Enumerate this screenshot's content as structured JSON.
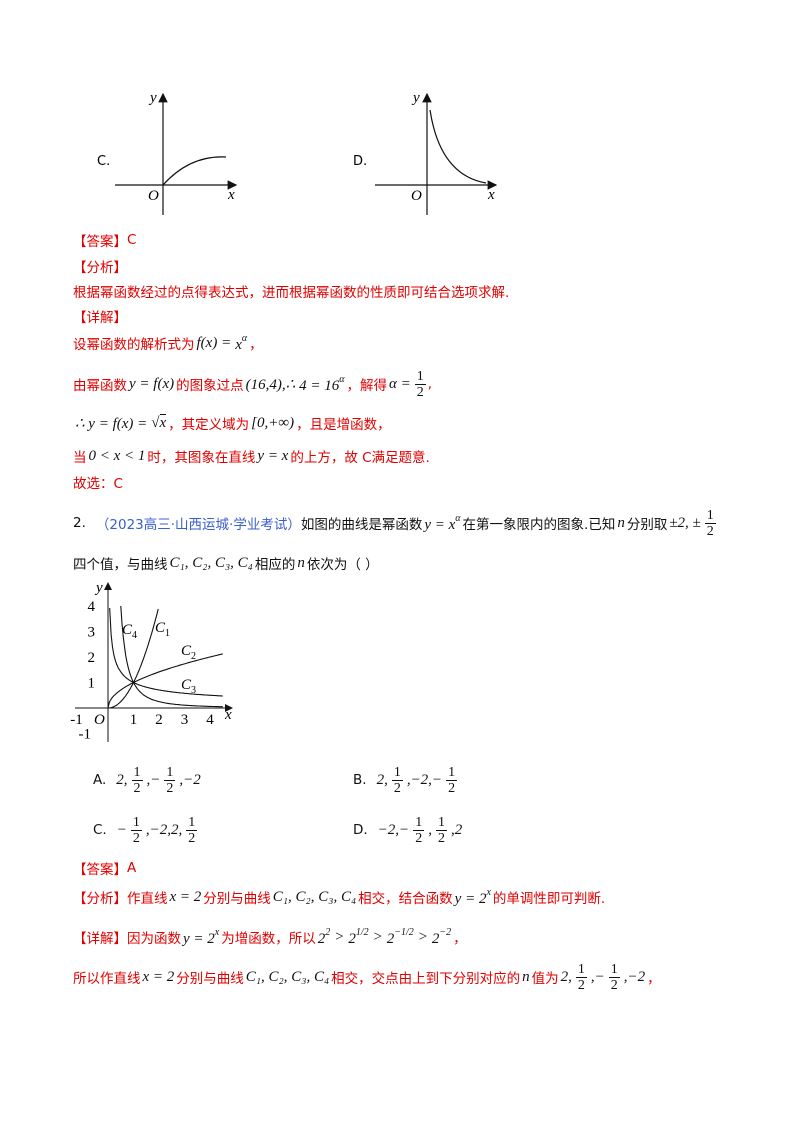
{
  "q1_options": [
    {
      "label": "C.",
      "axis": {
        "y": "y",
        "origin": "O",
        "x": "x"
      }
    },
    {
      "label": "D.",
      "axis": {
        "y": "y",
        "origin": "O",
        "x": "x"
      }
    }
  ],
  "q1_answer": {
    "tag": "【答案】",
    "text": "C"
  },
  "q1_analysis": {
    "tag": "【分析】",
    "text": "根据幂函数经过的点得表达式，进而根据幂函数的性质即可结合选项求解."
  },
  "q1_detail": {
    "tag": "【详解】",
    "lines": [
      [
        "设幂函数的解析式为",
        {
          "m": "f(x) = "
        },
        {
          "sup": [
            "x",
            "α"
          ]
        },
        "，"
      ],
      [
        "由幂函数 ",
        {
          "m": "y = f(x)"
        },
        " 的图象过点",
        {
          "m": "(16,4),∴"
        },
        {
          "sup": [
            "4 = 16",
            "α"
          ]
        },
        "，解得 ",
        {
          "m": "α = "
        },
        {
          "frac": [
            "1",
            "2"
          ]
        },
        ","
      ],
      [
        {
          "m": "∴ y = f(x) = "
        },
        {
          "sqrt": "x"
        },
        "，其定义域为",
        {
          "m": "[0,+∞)"
        },
        "，且是增函数，"
      ],
      [
        "当",
        {
          "m": "0 < x < 1"
        },
        "时，其图象在直线",
        {
          "m": "y = x"
        },
        "的上方，故 C满足题意."
      ]
    ],
    "conclusion": "故选：C"
  },
  "q2": {
    "number": "2.",
    "source": "（2023高三·山西运城·学业考试）",
    "stem_lines": [
      [
        "如图的曲线是幂函数",
        {
          "sup": [
            "y = x",
            "α"
          ]
        },
        "在第一象限内的图象.已知",
        {
          "m": "n"
        },
        "分别取",
        {
          "m": "±2, ±"
        },
        {
          "frac": [
            "1",
            "2"
          ]
        }
      ],
      [
        "四个值，与曲线",
        {
          "m": "C₁, C₂, C₃, C₄"
        },
        "相应的",
        {
          "m": "n"
        },
        "依次为（    ）"
      ]
    ],
    "figure": {
      "y": "y",
      "x": "x",
      "origin": "O",
      "yticks": [
        "4",
        "3",
        "2",
        "1",
        "-1"
      ],
      "xticks": [
        "-1",
        "1",
        "2",
        "3",
        "4"
      ],
      "curves": [
        {
          "name": "C",
          "index": "4"
        },
        {
          "name": "C",
          "index": "1"
        },
        {
          "name": "C",
          "index": "2"
        },
        {
          "name": "C",
          "index": "3"
        }
      ]
    },
    "options": [
      {
        "label": "A.",
        "parts": [
          {
            "m": "2,"
          },
          {
            "frac": [
              "1",
              "2"
            ]
          },
          {
            "m": ",−"
          },
          {
            "frac": [
              "1",
              "2"
            ]
          },
          {
            "m": ",−2"
          }
        ]
      },
      {
        "label": "B.",
        "parts": [
          {
            "m": "2,"
          },
          {
            "frac": [
              "1",
              "2"
            ]
          },
          {
            "m": ",−2,−"
          },
          {
            "frac": [
              "1",
              "2"
            ]
          }
        ]
      },
      {
        "label": "C.",
        "parts": [
          {
            "m": "−"
          },
          {
            "frac": [
              "1",
              "2"
            ]
          },
          {
            "m": ",−2,2,"
          },
          {
            "frac": [
              "1",
              "2"
            ]
          }
        ]
      },
      {
        "label": "D.",
        "parts": [
          {
            "m": "−2,−"
          },
          {
            "frac": [
              "1",
              "2"
            ]
          },
          {
            "m": ","
          },
          {
            "frac": [
              "1",
              "2"
            ]
          },
          {
            "m": ",2"
          }
        ]
      }
    ],
    "answer": {
      "tag": "【答案】",
      "text": "A"
    },
    "analysis": {
      "tag": "【分析】",
      "parts": [
        "作直线",
        {
          "m": "x = 2"
        },
        "分别与曲线",
        {
          "m": "C₁, C₂, C₃, C₄"
        },
        "相交，结合函数",
        {
          "sup": [
            "y = 2",
            "x"
          ]
        },
        "的单调性即可判断."
      ]
    },
    "detail": {
      "tag": "【详解】",
      "lines": [
        [
          "因为函数",
          {
            "sup": [
              "y = 2",
              "x"
            ]
          },
          "为增函数，所以",
          {
            "sup": [
              "2",
              "2"
            ]
          },
          {
            "m": " > "
          },
          {
            "sup": [
              "2",
              "1/2"
            ]
          },
          {
            "m": " > "
          },
          {
            "sup": [
              "2",
              "−1/2"
            ]
          },
          {
            "m": " > "
          },
          {
            "sup": [
              "2",
              "−2"
            ]
          },
          "，"
        ],
        [
          "所以作直线",
          {
            "m": "x = 2"
          },
          "分别与曲线",
          {
            "m": "C₁, C₂, C₃, C₄"
          },
          "相交，交点由上到下分别对应的",
          {
            "m": "n"
          },
          "值为",
          {
            "m": "2,"
          },
          {
            "frac": [
              "1",
              "2"
            ]
          },
          {
            "m": ",−"
          },
          {
            "frac": [
              "1",
              "2"
            ]
          },
          {
            "m": ",−2"
          },
          "，"
        ]
      ]
    }
  }
}
